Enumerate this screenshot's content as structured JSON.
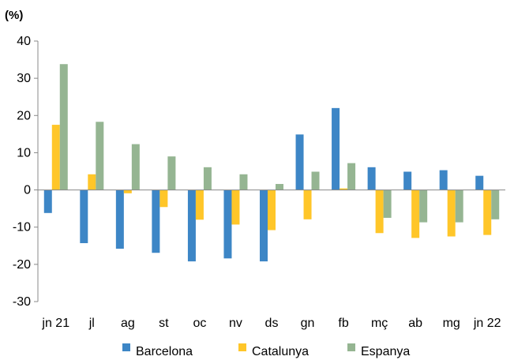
{
  "chart_data": {
    "type": "bar",
    "unit_label": "(%)",
    "categories": [
      "jn 21",
      "jl",
      "ag",
      "st",
      "oc",
      "nv",
      "ds",
      "gn",
      "fb",
      "mç",
      "ab",
      "mg",
      "jn 22"
    ],
    "series": [
      {
        "name": "Barcelona",
        "color": "#3D86C6",
        "values": [
          -6.2,
          -14.3,
          -15.8,
          -16.9,
          -19.2,
          -18.4,
          -19.2,
          14.9,
          22.0,
          6.1,
          4.9,
          5.3,
          3.8
        ]
      },
      {
        "name": "Catalunya",
        "color": "#FFC629",
        "values": [
          17.5,
          4.2,
          -0.9,
          -4.6,
          -8.0,
          -9.3,
          -10.8,
          -7.9,
          0.4,
          -11.6,
          -12.9,
          -12.5,
          -12.1
        ]
      },
      {
        "name": "Espanya",
        "color": "#95B592",
        "values": [
          33.8,
          18.3,
          12.3,
          9.0,
          6.1,
          4.2,
          1.6,
          4.9,
          7.2,
          -7.5,
          -8.7,
          -8.7,
          -7.9
        ]
      }
    ],
    "ylim": [
      -30,
      40
    ],
    "yticks": [
      -30,
      -20,
      -10,
      0,
      10,
      20,
      30,
      40
    ],
    "grid": false,
    "legend_position": "bottom"
  }
}
